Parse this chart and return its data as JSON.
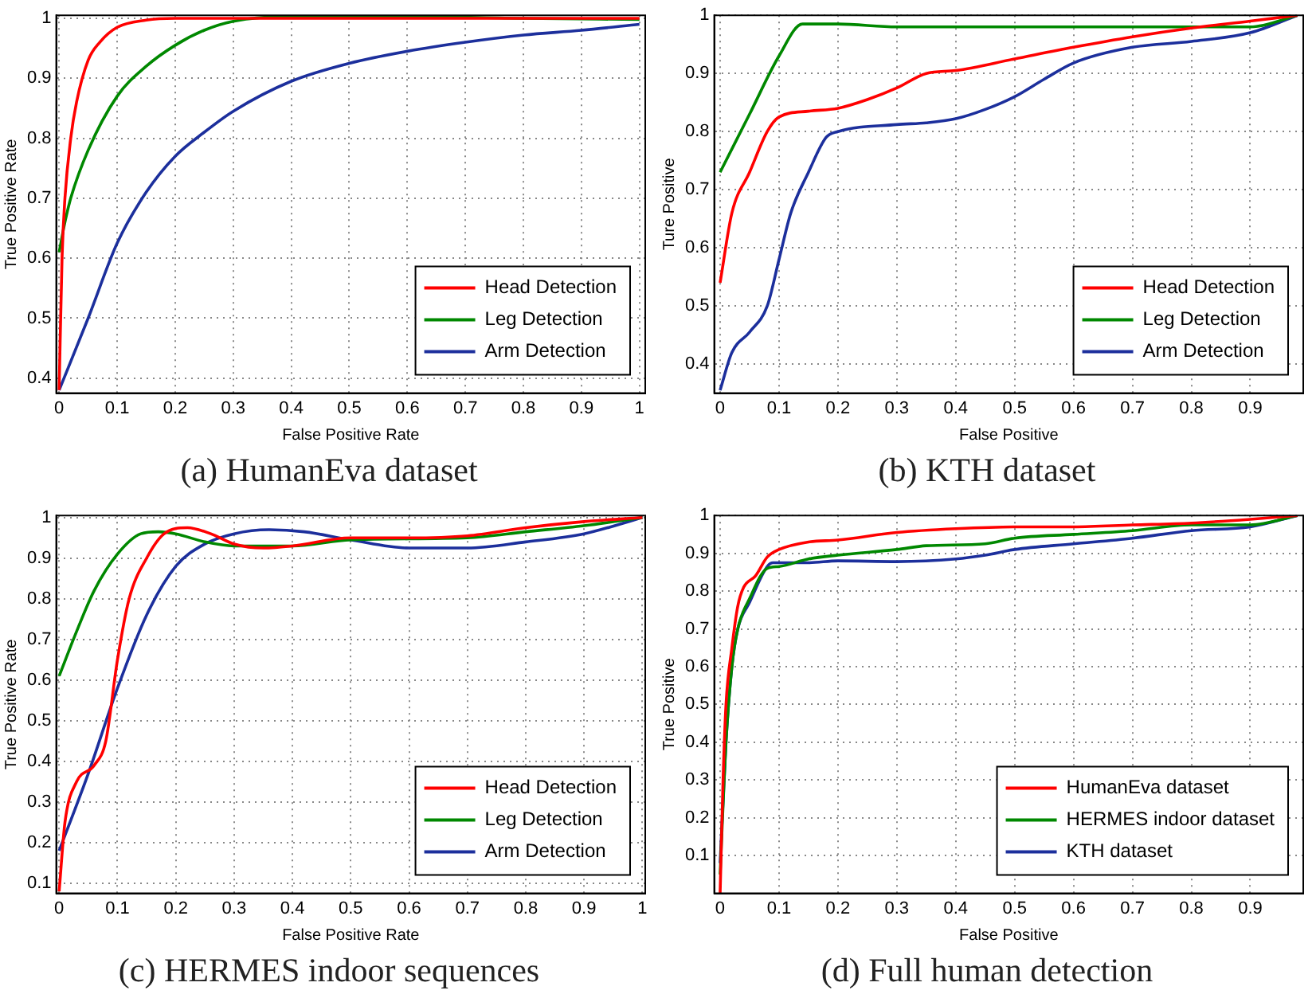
{
  "chart_data": [
    {
      "type": "line",
      "title": "(a) HumanEva dataset",
      "xlabel": "False Positive Rate",
      "ylabel": "True Positive Rate",
      "xlim": [
        -0.005,
        1.01
      ],
      "ylim": [
        0.375,
        1.005
      ],
      "xticks": [
        0,
        0.1,
        0.2,
        0.3,
        0.4,
        0.5,
        0.6,
        0.7,
        0.8,
        0.9,
        1
      ],
      "yticks": [
        0.4,
        0.5,
        0.6,
        0.7,
        0.8,
        0.9,
        1
      ],
      "grid": true,
      "legend": "bottom right",
      "marker": "none",
      "line_style": "solid",
      "series": [
        {
          "name": "Head Detection",
          "color": "#ff0000",
          "x": [
            0,
            0.005,
            0.01,
            0.02,
            0.03,
            0.05,
            0.07,
            0.1,
            0.15,
            0.2,
            1
          ],
          "values": [
            0.38,
            0.6,
            0.7,
            0.8,
            0.86,
            0.93,
            0.96,
            0.985,
            0.997,
            1,
            1
          ]
        },
        {
          "name": "Leg Detection",
          "color": "#008800",
          "x": [
            0,
            0.01,
            0.02,
            0.05,
            0.1,
            0.15,
            0.2,
            0.25,
            0.3,
            0.4,
            0.6,
            0.8,
            1
          ],
          "values": [
            0.61,
            0.66,
            0.7,
            0.78,
            0.87,
            0.92,
            0.955,
            0.98,
            0.995,
            1.003,
            1.003,
            1.0,
            0.998
          ]
        },
        {
          "name": "Arm Detection",
          "color": "#1c2f9c",
          "x": [
            0,
            0.05,
            0.1,
            0.15,
            0.2,
            0.25,
            0.3,
            0.4,
            0.5,
            0.6,
            0.7,
            0.8,
            0.9,
            1
          ],
          "values": [
            0.38,
            0.5,
            0.625,
            0.71,
            0.77,
            0.81,
            0.845,
            0.895,
            0.925,
            0.945,
            0.96,
            0.972,
            0.98,
            0.99
          ]
        }
      ]
    },
    {
      "type": "line",
      "title": "(b) KTH dataset",
      "xlabel": "False Positive",
      "ylabel": "Ture Positive",
      "xlim": [
        -0.01,
        0.99
      ],
      "ylim": [
        0.35,
        1.0
      ],
      "xticks": [
        0,
        0.1,
        0.2,
        0.3,
        0.4,
        0.5,
        0.6,
        0.7,
        0.8,
        0.9
      ],
      "yticks": [
        0.4,
        0.5,
        0.6,
        0.7,
        0.8,
        0.9,
        1
      ],
      "grid": true,
      "legend": "bottom right",
      "marker": "none",
      "line_style": "solid",
      "series": [
        {
          "name": "Head Detection",
          "color": "#ff0000",
          "x": [
            0,
            0.02,
            0.05,
            0.08,
            0.1,
            0.15,
            0.2,
            0.25,
            0.3,
            0.35,
            0.4,
            0.5,
            0.6,
            0.7,
            0.8,
            0.9,
            0.98
          ],
          "values": [
            0.54,
            0.66,
            0.73,
            0.8,
            0.825,
            0.835,
            0.84,
            0.855,
            0.875,
            0.9,
            0.905,
            0.925,
            0.945,
            0.963,
            0.978,
            0.99,
            1.0
          ]
        },
        {
          "name": "Leg Detection",
          "color": "#008800",
          "x": [
            0,
            0.05,
            0.1,
            0.14,
            0.2,
            0.3,
            0.6,
            0.9,
            0.98
          ],
          "values": [
            0.73,
            0.83,
            0.93,
            0.985,
            0.985,
            0.98,
            0.98,
            0.98,
            1.0
          ]
        },
        {
          "name": "Arm Detection",
          "color": "#1c2f9c",
          "x": [
            0,
            0.02,
            0.05,
            0.08,
            0.1,
            0.12,
            0.15,
            0.18,
            0.2,
            0.3,
            0.35,
            0.4,
            0.45,
            0.5,
            0.55,
            0.6,
            0.7,
            0.8,
            0.9,
            0.98
          ],
          "values": [
            0.355,
            0.42,
            0.455,
            0.5,
            0.58,
            0.66,
            0.73,
            0.79,
            0.8,
            0.812,
            0.815,
            0.822,
            0.838,
            0.86,
            0.89,
            0.918,
            0.945,
            0.955,
            0.97,
            1.0
          ]
        }
      ]
    },
    {
      "type": "line",
      "title": "(c) HERMES indoor sequences",
      "xlabel": "False Positive Rate",
      "ylabel": "True Positive Rate",
      "xlim": [
        -0.005,
        1.005
      ],
      "ylim": [
        0.075,
        1.005
      ],
      "xticks": [
        0,
        0.1,
        0.2,
        0.3,
        0.4,
        0.5,
        0.6,
        0.7,
        0.8,
        0.9,
        1
      ],
      "yticks": [
        0.1,
        0.2,
        0.3,
        0.4,
        0.5,
        0.6,
        0.7,
        0.8,
        0.9,
        1
      ],
      "grid": true,
      "legend": "bottom right",
      "marker": "none",
      "line_style": "solid",
      "series": [
        {
          "name": "Head Detection",
          "color": "#ff0000",
          "x": [
            0,
            0.01,
            0.03,
            0.06,
            0.08,
            0.1,
            0.12,
            0.15,
            0.18,
            0.22,
            0.26,
            0.3,
            0.35,
            0.4,
            0.5,
            0.6,
            0.7,
            0.8,
            0.9,
            1
          ],
          "values": [
            0.08,
            0.25,
            0.35,
            0.39,
            0.45,
            0.65,
            0.8,
            0.9,
            0.96,
            0.975,
            0.96,
            0.935,
            0.925,
            0.93,
            0.95,
            0.95,
            0.955,
            0.975,
            0.99,
            1
          ]
        },
        {
          "name": "Leg Detection",
          "color": "#008800",
          "x": [
            0,
            0.03,
            0.06,
            0.1,
            0.14,
            0.17,
            0.2,
            0.25,
            0.3,
            0.4,
            0.5,
            0.6,
            0.7,
            0.8,
            0.9,
            1
          ],
          "values": [
            0.61,
            0.72,
            0.82,
            0.91,
            0.96,
            0.965,
            0.96,
            0.94,
            0.93,
            0.93,
            0.945,
            null,
            0.95,
            0.965,
            0.98,
            1
          ]
        },
        {
          "name": "Arm Detection",
          "color": "#1c2f9c",
          "x": [
            0,
            0.05,
            0.1,
            0.15,
            0.2,
            0.25,
            0.3,
            0.36,
            0.42,
            0.5,
            0.6,
            0.7,
            0.8,
            0.9,
            1
          ],
          "values": [
            0.18,
            0.37,
            0.58,
            0.76,
            0.88,
            0.935,
            0.96,
            0.97,
            0.965,
            0.945,
            0.925,
            0.925,
            0.94,
            0.96,
            1
          ]
        }
      ]
    },
    {
      "type": "line",
      "title": "(d) Full human detection",
      "xlabel": "False Positive",
      "ylabel": "True Positive",
      "xlim": [
        -0.01,
        0.99
      ],
      "ylim": [
        0,
        1
      ],
      "xticks": [
        0,
        0.1,
        0.2,
        0.3,
        0.4,
        0.5,
        0.6,
        0.7,
        0.8,
        0.9
      ],
      "yticks": [
        0.1,
        0.2,
        0.3,
        0.4,
        0.5,
        0.6,
        0.7,
        0.8,
        0.9,
        1
      ],
      "grid": true,
      "legend": "bottom right",
      "marker": "none",
      "line_style": "solid",
      "series": [
        {
          "name": "HumanEva dataset",
          "color": "#ff0000",
          "x": [
            0,
            0.005,
            0.01,
            0.02,
            0.03,
            0.04,
            0.06,
            0.08,
            0.1,
            0.15,
            0.2,
            0.3,
            0.4,
            0.5,
            0.6,
            0.7,
            0.8,
            0.9,
            0.98
          ],
          "values": [
            0,
            0.3,
            0.5,
            0.65,
            0.76,
            0.81,
            0.84,
            0.89,
            0.91,
            0.93,
            0.935,
            0.955,
            0.965,
            0.97,
            0.97,
            0.975,
            0.98,
            0.99,
            1
          ]
        },
        {
          "name": "HERMES indoor dataset",
          "color": "#008800",
          "x": [
            0,
            0.01,
            0.02,
            0.03,
            0.05,
            0.08,
            0.1,
            0.15,
            0.2,
            0.3,
            0.35,
            0.45,
            0.5,
            0.6,
            0.7,
            0.8,
            0.9,
            0.98
          ],
          "values": [
            0.05,
            0.4,
            0.6,
            0.7,
            0.78,
            0.86,
            0.865,
            0.885,
            0.895,
            0.91,
            0.92,
            0.925,
            0.94,
            0.95,
            0.96,
            0.975,
            0.975,
            1
          ]
        },
        {
          "name": "KTH dataset",
          "color": "#1c2f9c",
          "x": [
            0,
            0.01,
            0.02,
            0.03,
            0.05,
            0.08,
            0.09,
            0.15,
            0.2,
            0.3,
            0.4,
            0.45,
            0.5,
            0.6,
            0.7,
            0.8,
            0.9,
            0.98
          ],
          "values": [
            0.08,
            0.4,
            0.6,
            0.7,
            0.77,
            0.865,
            0.875,
            0.875,
            0.88,
            0.878,
            0.885,
            0.895,
            0.91,
            0.925,
            0.94,
            0.96,
            0.97,
            1
          ]
        }
      ]
    }
  ]
}
